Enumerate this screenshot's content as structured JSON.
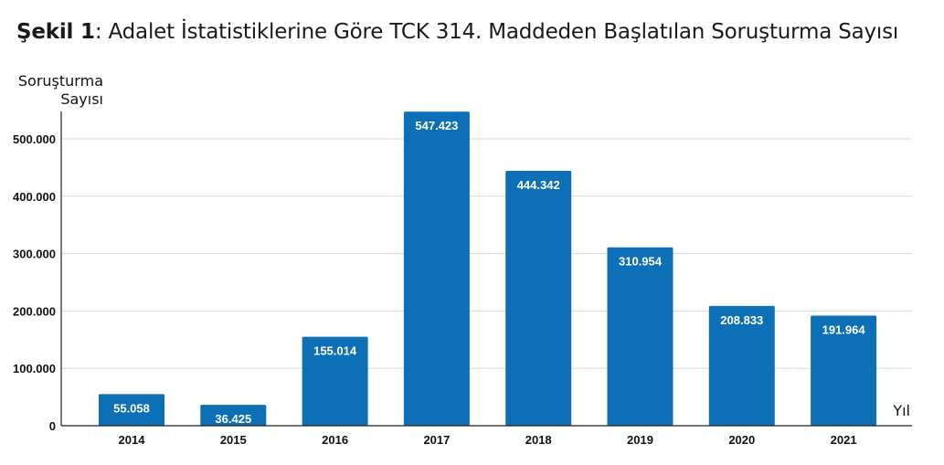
{
  "chart_data": {
    "type": "bar",
    "title_prefix": "Şekil 1",
    "title_sep": ":",
    "title": "Adalet İstatistiklerine Göre TCK 314. Maddeden Başlatılan Soruşturma Sayısı",
    "ylabel_lines": [
      "Soruşturma",
      "Sayısı"
    ],
    "xlabel": "Yıl",
    "categories": [
      "2014",
      "2015",
      "2016",
      "2017",
      "2018",
      "2019",
      "2020",
      "2021"
    ],
    "values": [
      55058,
      36425,
      155014,
      547423,
      444342,
      310954,
      208833,
      191964
    ],
    "value_labels": [
      "55.058",
      "36.425",
      "155.014",
      "547.423",
      "444.342",
      "310.954",
      "208.833",
      "191.964"
    ],
    "yticks": [
      0,
      100000,
      200000,
      300000,
      400000,
      500000
    ],
    "ytick_labels": [
      "0",
      "100.000",
      "200.000",
      "300.000",
      "400.000",
      "500.000"
    ],
    "ylim": [
      0,
      547423
    ],
    "grid": true,
    "bar_color": "#0d6fb5",
    "grid_color": "#d9d9d9",
    "axis_color": "#222222"
  }
}
